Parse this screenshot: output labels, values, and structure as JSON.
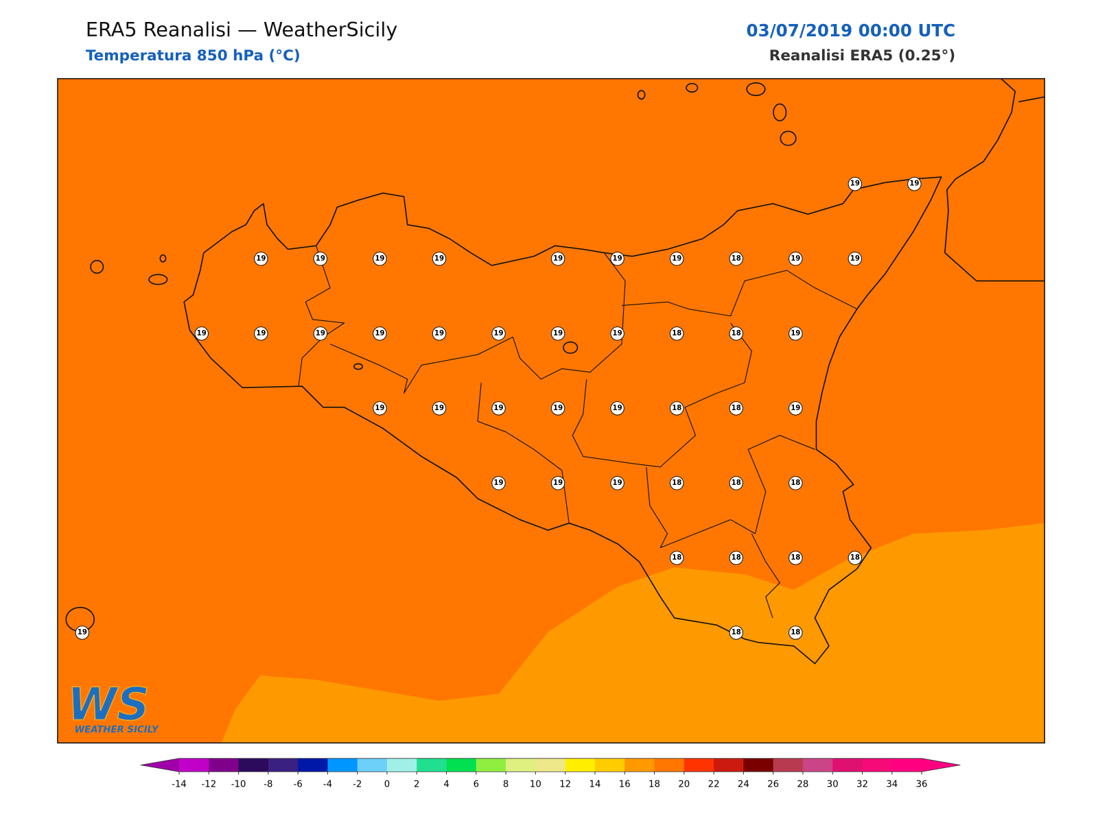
{
  "header": {
    "title": "ERA5 Reanalisi — WeatherSicily",
    "subtitle": "Temperatura 850 hPa (°C)",
    "datetime": "03/07/2019 00:00 UTC",
    "source": "Reanalisi ERA5 (0.25°)"
  },
  "stations": [
    19,
    19,
    19,
    19,
    19,
    19,
    19,
    19,
    19,
    18,
    19,
    19,
    19,
    19,
    19,
    19,
    19,
    19,
    19,
    19,
    18,
    18,
    19,
    19,
    19,
    19,
    19,
    19,
    18,
    18,
    19,
    19,
    19,
    19,
    18,
    18,
    18,
    18,
    18,
    18,
    18,
    19,
    18,
    18
  ],
  "colorbar": {
    "ticks": [
      -14,
      -12,
      -10,
      -8,
      -6,
      -4,
      -2,
      0,
      2,
      4,
      6,
      8,
      10,
      12,
      14,
      16,
      18,
      20,
      22,
      24,
      26,
      28,
      30,
      32,
      34,
      36
    ],
    "under_color": "#a000a8",
    "over_color": "#ff0080",
    "colors": [
      "#c000c8",
      "#80008c",
      "#2c0a5c",
      "#3a2080",
      "#0018a8",
      "#0096ff",
      "#6cd0f8",
      "#a0f0e8",
      "#20e090",
      "#00e050",
      "#90ee40",
      "#dff080",
      "#eee88a",
      "#ffee00",
      "#ffcc00",
      "#ff9900",
      "#ff7700",
      "#ff3300",
      "#cc1a10",
      "#7a0000",
      "#b83a50",
      "#cc4488",
      "#e01070",
      "#f50a78",
      "#ff0080"
    ]
  },
  "logo": {
    "mark": "WS",
    "text": "WEATHER SICILY"
  }
}
